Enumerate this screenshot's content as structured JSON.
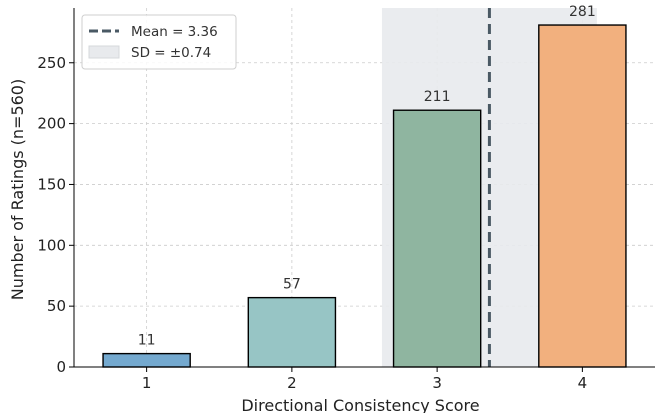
{
  "chart_data": {
    "type": "bar",
    "categories": [
      "1",
      "2",
      "3",
      "4"
    ],
    "values": [
      11,
      57,
      211,
      281
    ],
    "bar_colors": [
      "#74a9cf",
      "#97c5c5",
      "#8fb5a0",
      "#f2b07e"
    ],
    "value_labels": [
      "11",
      "57",
      "211",
      "281"
    ],
    "xlabel": "Directional Consistency Score",
    "ylabel": "Number of Ratings (n=560)",
    "ylim": [
      0,
      295
    ],
    "yticks": [
      0,
      50,
      100,
      150,
      200,
      250
    ],
    "grid": true,
    "mean": {
      "value": 3.36,
      "label": "Mean = 3.36",
      "color": "#4a5964",
      "style": "dashed"
    },
    "sd_band": {
      "lower": 2.62,
      "upper": 4.1,
      "label": "SD = ±0.74",
      "color": "#e8eaed"
    },
    "legend_position": "top-left"
  }
}
